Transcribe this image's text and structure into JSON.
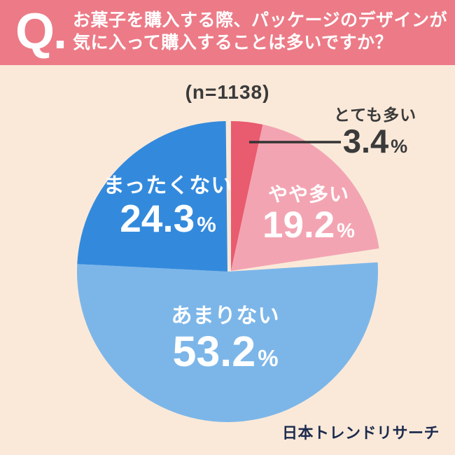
{
  "header": {
    "q_mark": "Q.",
    "question_line1": "お菓子を購入する際、パッケージのデザインが",
    "question_line2": "気に入って購入することは多いですか？"
  },
  "sample_size_label": "(n=1138)",
  "percent_symbol": "%",
  "chart_data": {
    "type": "pie",
    "title": "お菓子を購入する際、パッケージのデザインが気に入って購入することは多いですか？",
    "sample_size": 1138,
    "start_angle_deg": 0,
    "direction": "clockwise",
    "slices": [
      {
        "label": "とても多い",
        "value": 3.4,
        "color": "#e95b6f",
        "label_style": "outside-dark"
      },
      {
        "label": "やや多い",
        "value": 19.2,
        "color": "#f3a4b2",
        "label_style": "inside-white"
      },
      {
        "label": "あまりない",
        "value": 53.2,
        "color": "#7cb6e9",
        "label_style": "inside-white"
      },
      {
        "label": "まったくない",
        "value": 24.3,
        "color": "#338add",
        "label_style": "inside-white"
      }
    ]
  },
  "footer": {
    "brand": "日本トレンドリサーチ"
  },
  "colors": {
    "background": "#fae9d9",
    "header_bg": "#ec7b87",
    "text_dark": "#3a3a3a",
    "leader_line": "#333333",
    "brand_navy": "#1c2b4e"
  }
}
